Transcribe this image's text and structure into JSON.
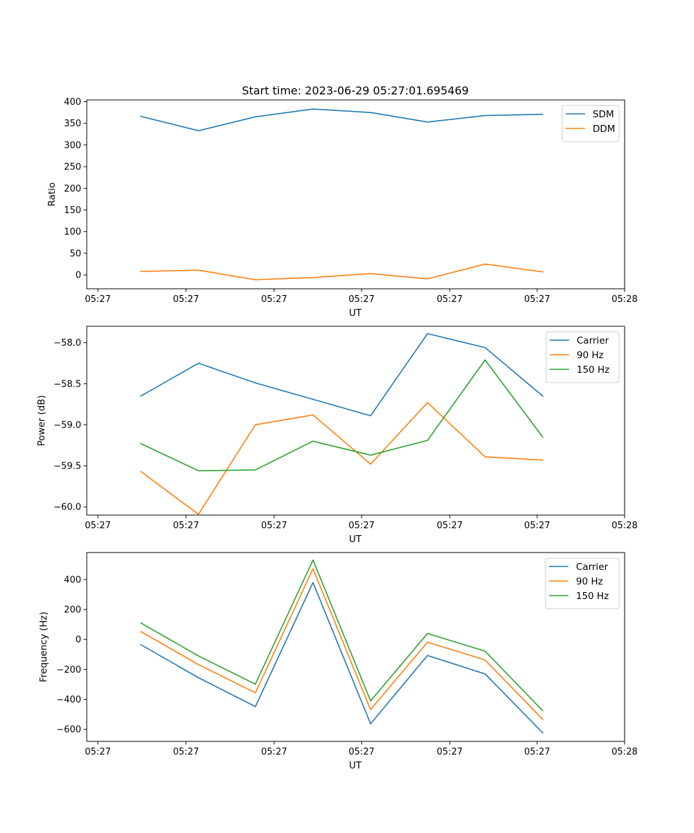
{
  "title": "Start time: 2023-06-29 05:27:01.695469",
  "colors": {
    "blue": "#1f77b4",
    "orange": "#ff7f0e",
    "green": "#2ca02c"
  },
  "x_ticks": [
    "05:27",
    "05:27",
    "05:27",
    "05:27",
    "05:27",
    "05:27",
    "05:28"
  ],
  "chart_data": [
    {
      "type": "line",
      "xlabel": "UT",
      "ylabel": "Ratio",
      "ylim": [
        -32,
        404
      ],
      "yticks": [
        0,
        50,
        100,
        150,
        200,
        250,
        300,
        350,
        400
      ],
      "legend_position": "top-right",
      "series": [
        {
          "name": "SDM",
          "color": "#1f77b4",
          "values": [
            366,
            333,
            365,
            383,
            375,
            353,
            368,
            371
          ]
        },
        {
          "name": "DDM",
          "color": "#ff7f0e",
          "values": [
            8,
            11,
            -11,
            -6,
            3,
            -9,
            25,
            7
          ]
        }
      ]
    },
    {
      "type": "line",
      "xlabel": "UT",
      "ylabel": "Power (dB)",
      "ylim": [
        -60.1,
        -57.8
      ],
      "yticks": [
        -60.0,
        -59.5,
        -59.0,
        -58.5,
        -58.0
      ],
      "ytick_labels": [
        "−60.0",
        "−59.5",
        "−59.0",
        "−58.5",
        "−58.0"
      ],
      "legend_position": "top-right",
      "series": [
        {
          "name": "Carrier",
          "color": "#1f77b4",
          "values": [
            -58.65,
            -58.25,
            -58.49,
            -58.69,
            -58.89,
            -57.89,
            -58.06,
            -58.65
          ]
        },
        {
          "name": "90 Hz",
          "color": "#ff7f0e",
          "values": [
            -59.57,
            -60.09,
            -59.0,
            -58.88,
            -59.48,
            -58.73,
            -59.39,
            -59.43
          ]
        },
        {
          "name": "150 Hz",
          "color": "#2ca02c",
          "values": [
            -59.23,
            -59.56,
            -59.55,
            -59.2,
            -59.37,
            -59.19,
            -58.21,
            -59.15
          ]
        }
      ]
    },
    {
      "type": "line",
      "xlabel": "UT",
      "ylabel": "Frequency (Hz)",
      "ylim": [
        -680,
        580
      ],
      "yticks": [
        -600,
        -400,
        -200,
        0,
        200,
        400
      ],
      "ytick_labels": [
        "−600",
        "−400",
        "−200",
        "0",
        "200",
        "400"
      ],
      "legend_position": "top-right",
      "series": [
        {
          "name": "Carrier",
          "color": "#1f77b4",
          "values": [
            -35,
            -255,
            -448,
            380,
            -563,
            -107,
            -230,
            -623
          ]
        },
        {
          "name": "90 Hz",
          "color": "#ff7f0e",
          "values": [
            53,
            -168,
            -356,
            472,
            -468,
            -18,
            -137,
            -533
          ]
        },
        {
          "name": "150 Hz",
          "color": "#2ca02c",
          "values": [
            110,
            -110,
            -298,
            530,
            -410,
            40,
            -78,
            -475
          ]
        }
      ]
    }
  ]
}
